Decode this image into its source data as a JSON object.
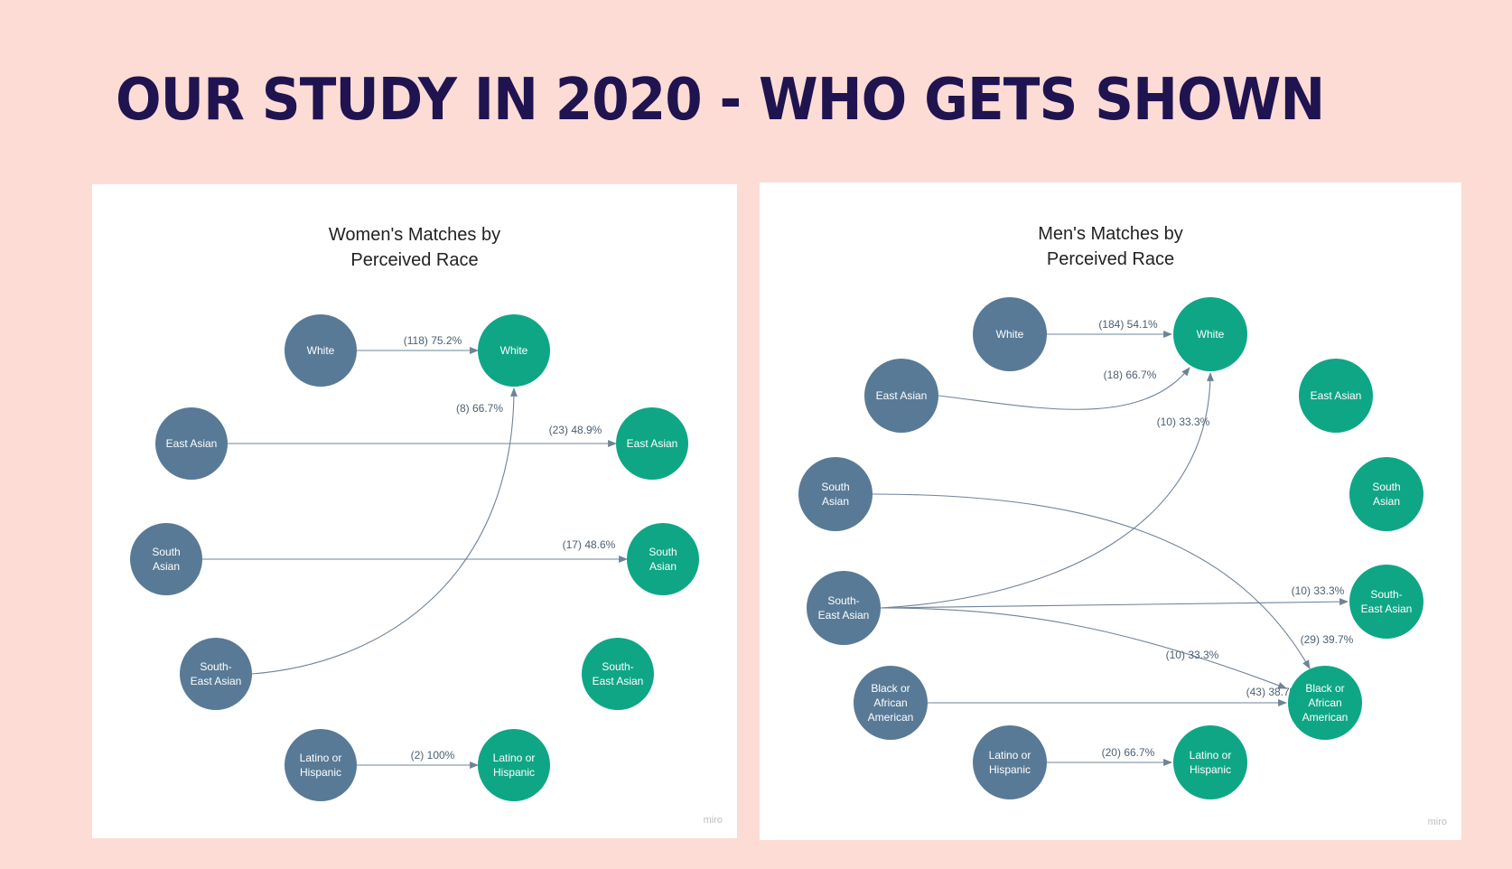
{
  "page": {
    "title": "OUR STUDY IN 2020 - WHO GETS SHOWN",
    "colors": {
      "background": "#fddcd6",
      "title": "#1f1450",
      "source_node": "#587a96",
      "target_node": "#0fa686",
      "edge": "#6f8396"
    }
  },
  "diagrams": [
    {
      "title_line1": "Women's Matches by",
      "title_line2": "Perceived Race",
      "watermark": "miro",
      "nodes": [
        {
          "id": "w_s_white",
          "lines": [
            "White"
          ],
          "side": "source"
        },
        {
          "id": "w_s_eastasian",
          "lines": [
            "East Asian"
          ],
          "side": "source"
        },
        {
          "id": "w_s_southasian",
          "lines": [
            "South",
            "Asian"
          ],
          "side": "source"
        },
        {
          "id": "w_s_sea",
          "lines": [
            "South-",
            "East Asian"
          ],
          "side": "source"
        },
        {
          "id": "w_s_latino",
          "lines": [
            "Latino or",
            "Hispanic"
          ],
          "side": "source"
        },
        {
          "id": "w_t_white",
          "lines": [
            "White"
          ],
          "side": "target"
        },
        {
          "id": "w_t_eastasian",
          "lines": [
            "East Asian"
          ],
          "side": "target"
        },
        {
          "id": "w_t_southasian",
          "lines": [
            "South",
            "Asian"
          ],
          "side": "target"
        },
        {
          "id": "w_t_sea",
          "lines": [
            "South-",
            "East Asian"
          ],
          "side": "target"
        },
        {
          "id": "w_t_latino",
          "lines": [
            "Latino or",
            "Hispanic"
          ],
          "side": "target"
        }
      ],
      "edges": [
        {
          "from": "w_s_white",
          "to": "w_t_white",
          "label": "(118) 75.2%"
        },
        {
          "from": "w_s_sea",
          "to": "w_t_white",
          "label": "(8) 66.7%"
        },
        {
          "from": "w_s_eastasian",
          "to": "w_t_eastasian",
          "label": "(23) 48.9%"
        },
        {
          "from": "w_s_southasian",
          "to": "w_t_southasian",
          "label": "(17) 48.6%"
        },
        {
          "from": "w_s_latino",
          "to": "w_t_latino",
          "label": "(2) 100%"
        }
      ]
    },
    {
      "title_line1": "Men's Matches by",
      "title_line2": "Perceived Race",
      "watermark": "miro",
      "nodes": [
        {
          "id": "m_s_white",
          "lines": [
            "White"
          ],
          "side": "source"
        },
        {
          "id": "m_s_eastasian",
          "lines": [
            "East Asian"
          ],
          "side": "source"
        },
        {
          "id": "m_s_southasian",
          "lines": [
            "South",
            "Asian"
          ],
          "side": "source"
        },
        {
          "id": "m_s_sea",
          "lines": [
            "South-",
            "East Asian"
          ],
          "side": "source"
        },
        {
          "id": "m_s_black",
          "lines": [
            "Black or",
            "African",
            "American"
          ],
          "side": "source"
        },
        {
          "id": "m_s_latino",
          "lines": [
            "Latino or",
            "Hispanic"
          ],
          "side": "source"
        },
        {
          "id": "m_t_white",
          "lines": [
            "White"
          ],
          "side": "target"
        },
        {
          "id": "m_t_eastasian",
          "lines": [
            "East Asian"
          ],
          "side": "target"
        },
        {
          "id": "m_t_southasian",
          "lines": [
            "South",
            "Asian"
          ],
          "side": "target"
        },
        {
          "id": "m_t_sea",
          "lines": [
            "South-",
            "East Asian"
          ],
          "side": "target"
        },
        {
          "id": "m_t_black",
          "lines": [
            "Black or",
            "African",
            "American"
          ],
          "side": "target"
        },
        {
          "id": "m_t_latino",
          "lines": [
            "Latino or",
            "Hispanic"
          ],
          "side": "target"
        }
      ],
      "edges": [
        {
          "from": "m_s_white",
          "to": "m_t_white",
          "label": "(184) 54.1%"
        },
        {
          "from": "m_s_eastasian",
          "to": "m_t_white",
          "label": "(18) 66.7%"
        },
        {
          "from": "m_s_sea",
          "to": "m_t_white",
          "label": "(10) 33.3%"
        },
        {
          "from": "m_s_sea",
          "to": "m_t_sea",
          "label": "(10) 33.3%"
        },
        {
          "from": "m_s_southasian",
          "to": "m_t_black",
          "label": "(29) 39.7%"
        },
        {
          "from": "m_s_sea",
          "to": "m_t_black",
          "label": "(10) 33.3%"
        },
        {
          "from": "m_s_black",
          "to": "m_t_black",
          "label": "(43) 38.7%"
        },
        {
          "from": "m_s_latino",
          "to": "m_t_latino",
          "label": "(20) 66.7%"
        }
      ]
    }
  ]
}
